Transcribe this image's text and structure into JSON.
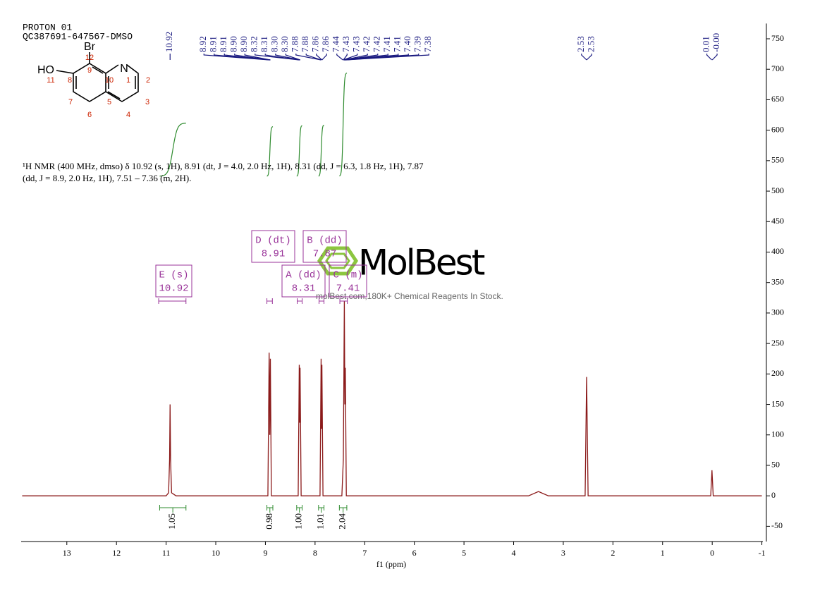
{
  "chart_data": {
    "type": "line",
    "header": [
      "PROTON 01",
      "QC387691-647567-DMSO"
    ],
    "description": "¹H NMR (400 MHz, dmso) δ 10.92 (s, 1H), 8.91 (dt, J = 4.0, 2.0 Hz, 1H), 8.31 (dd, J = 6.3, 1.8 Hz, 1H), 7.87 (dd, J = 8.9, 2.0 Hz, 1H), 7.51 – 7.36 (m, 2H).",
    "xlabel": "f1 (ppm)",
    "xlim": [
      13.92,
      -1.02
    ],
    "xticks": [
      13,
      12,
      11,
      10,
      9,
      8,
      7,
      6,
      5,
      4,
      3,
      2,
      1,
      0,
      -1
    ],
    "ylim": [
      -75,
      775
    ],
    "yticks": [
      -50,
      0,
      50,
      100,
      150,
      200,
      250,
      300,
      350,
      400,
      450,
      500,
      550,
      600,
      650,
      700,
      750
    ],
    "color": "#8b1a1a",
    "x": [
      13.9,
      11.0,
      10.95,
      10.93,
      10.92,
      10.91,
      10.89,
      10.8,
      8.95,
      8.925,
      8.912,
      8.9,
      8.88,
      8.34,
      8.318,
      8.31,
      8.302,
      8.28,
      7.9,
      7.878,
      7.87,
      7.862,
      7.84,
      7.46,
      7.43,
      7.41,
      7.4,
      7.39,
      7.37,
      3.7,
      3.5,
      3.3,
      2.56,
      2.53,
      2.5,
      0.03,
      0.005,
      -0.02,
      -1.0
    ],
    "values": [
      0,
      0,
      5,
      60,
      150,
      60,
      5,
      0,
      0,
      235,
      100,
      225,
      0,
      0,
      215,
      120,
      210,
      0,
      0,
      225,
      110,
      215,
      0,
      0,
      60,
      320,
      150,
      210,
      0,
      0,
      7,
      0,
      0,
      195,
      0,
      0,
      42,
      0,
      0
    ],
    "peak_color": "#1a1a80",
    "peak_picks": [
      {
        "value": 10.92,
        "label": "10.92"
      },
      {
        "value": 8.92,
        "label": "8.92"
      },
      {
        "value": 8.91,
        "label": "8.91"
      },
      {
        "value": 8.91,
        "label": "8.91"
      },
      {
        "value": 8.9,
        "label": "8.90"
      },
      {
        "value": 8.9,
        "label": "8.90"
      },
      {
        "value": 8.32,
        "label": "8.32"
      },
      {
        "value": 8.31,
        "label": "8.31"
      },
      {
        "value": 8.3,
        "label": "8.30"
      },
      {
        "value": 8.3,
        "label": "8.30"
      },
      {
        "value": 7.88,
        "label": "7.88"
      },
      {
        "value": 7.88,
        "label": "7.88"
      },
      {
        "value": 7.86,
        "label": "7.86"
      },
      {
        "value": 7.86,
        "label": "7.86"
      },
      {
        "value": 7.44,
        "label": "7.44"
      },
      {
        "value": 7.43,
        "label": "7.43"
      },
      {
        "value": 7.43,
        "label": "7.43"
      },
      {
        "value": 7.42,
        "label": "7.42"
      },
      {
        "value": 7.42,
        "label": "7.42"
      },
      {
        "value": 7.41,
        "label": "7.41"
      },
      {
        "value": 7.41,
        "label": "7.41"
      },
      {
        "value": 7.4,
        "label": "7.40"
      },
      {
        "value": 7.39,
        "label": "7.39"
      },
      {
        "value": 7.38,
        "label": "7.38"
      },
      {
        "value": 2.53,
        "label": "2.53"
      },
      {
        "value": 2.53,
        "label": "2.53"
      },
      {
        "value": 0.01,
        "label": "0.01"
      },
      {
        "value": 0,
        "label": "-0.00"
      }
    ],
    "multiplet_color": "#993399",
    "multiplets": [
      {
        "name": "E (s)",
        "shift": 10.92,
        "range": [
          11.15,
          10.6
        ]
      },
      {
        "name": "D (dt)",
        "shift": 8.91,
        "range": [
          8.97,
          8.86
        ]
      },
      {
        "name": "B (dd)",
        "shift": 7.87,
        "range": [
          7.92,
          7.82
        ]
      },
      {
        "name": "A (dd)",
        "shift": 8.31,
        "range": [
          8.36,
          8.26
        ]
      },
      {
        "name": "C (m)",
        "shift": 7.41,
        "range": [
          7.5,
          7.35
        ]
      }
    ],
    "integral_color": "#2e8b2e",
    "integrals": [
      {
        "range": [
          11.13,
          10.6
        ],
        "value": 1.05,
        "label": "1.05"
      },
      {
        "range": [
          8.97,
          8.85
        ],
        "value": 0.98,
        "label": "0.98"
      },
      {
        "range": [
          8.37,
          8.26
        ],
        "value": 1.0,
        "label": "1.00"
      },
      {
        "range": [
          7.93,
          7.82
        ],
        "value": 1.01,
        "label": "1.01"
      },
      {
        "range": [
          7.51,
          7.36
        ],
        "value": 2.04,
        "label": "2.04"
      }
    ],
    "structure": {
      "labels": [
        "Br",
        "HO",
        "N",
        "12",
        "11",
        "9",
        "8",
        "10",
        "1",
        "2",
        "7",
        "5",
        "3",
        "6",
        "4"
      ]
    },
    "watermark": {
      "brand": "MolBest",
      "tagline": "molBest.com,180K+ Chemical Reagents In Stock."
    }
  }
}
